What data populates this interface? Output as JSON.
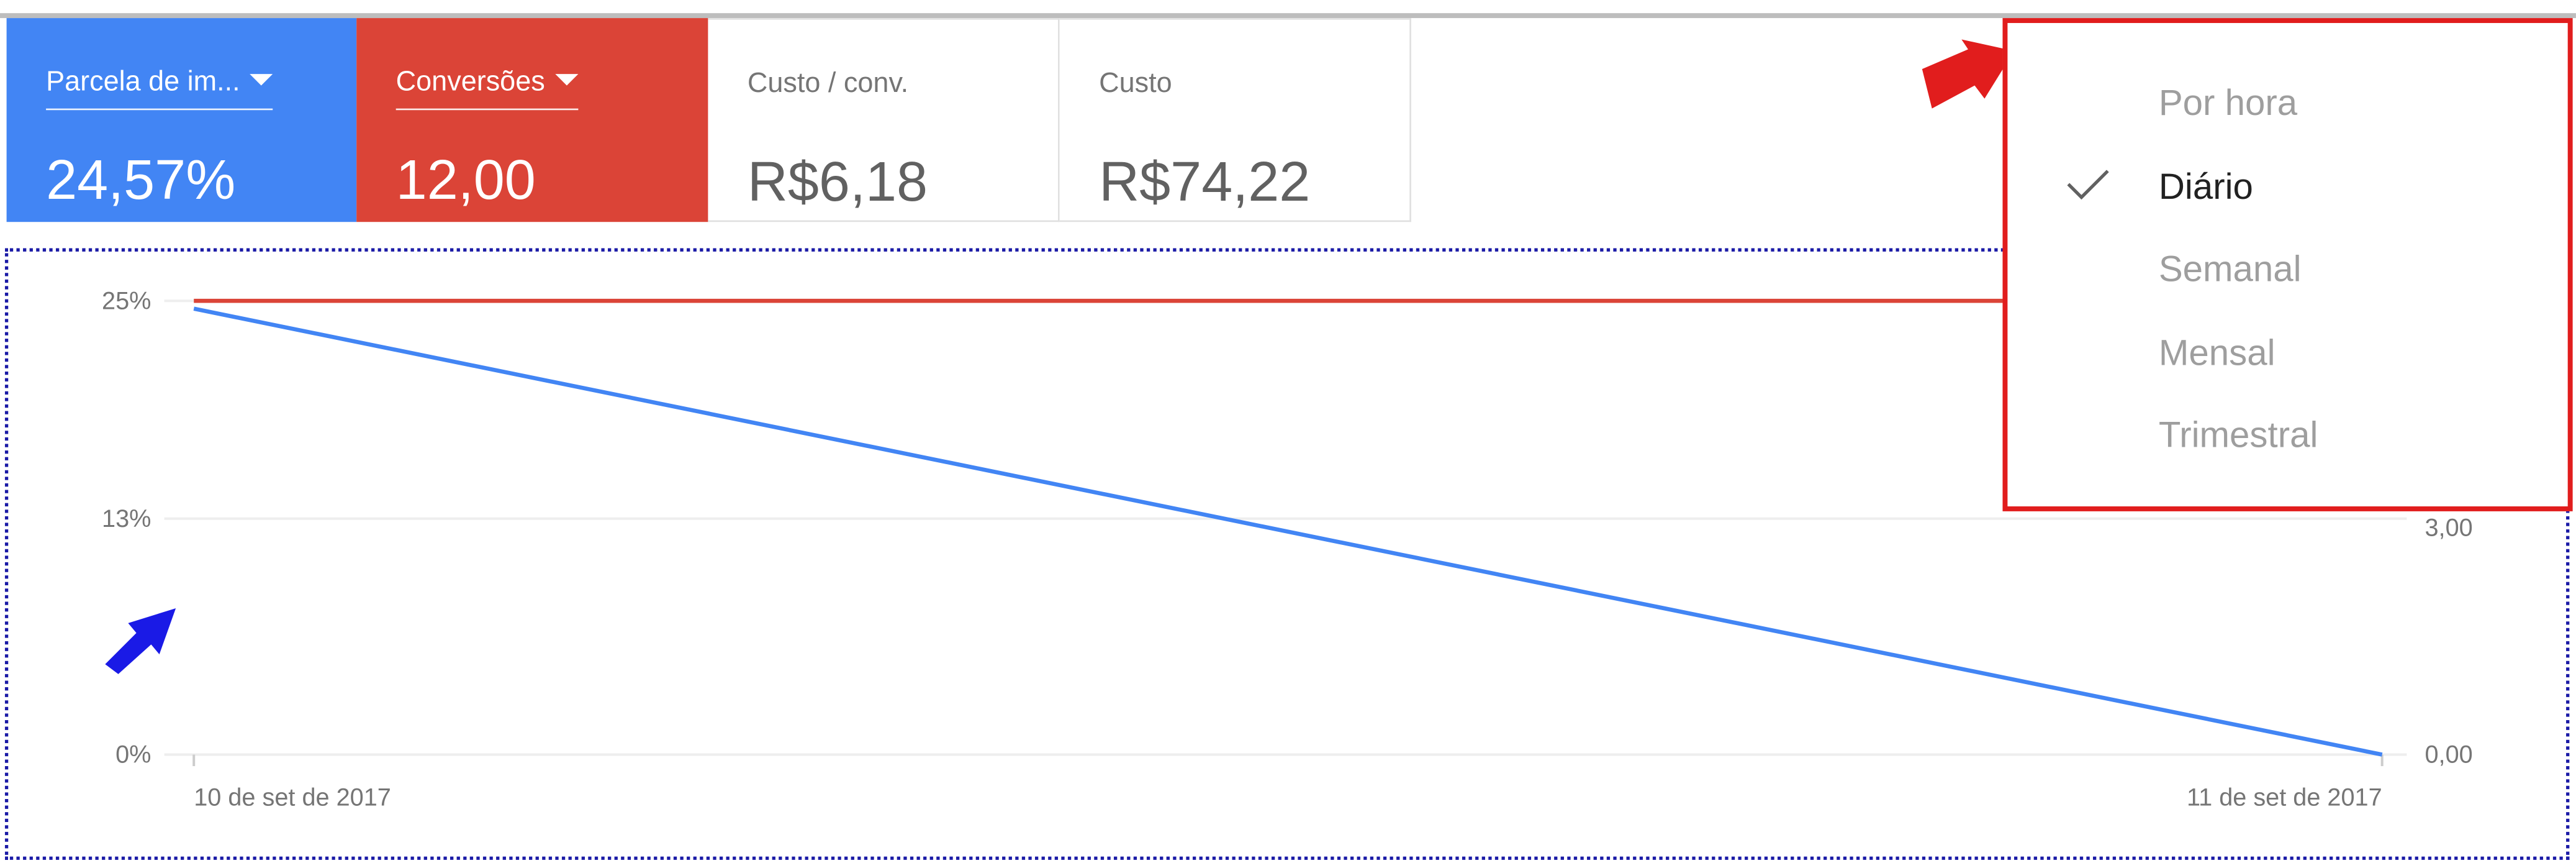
{
  "metrics": [
    {
      "label": "Parcela de im...",
      "value": "24,57%",
      "color": "#4285f4"
    },
    {
      "label": "Conversões",
      "value": "12,00",
      "color": "#db4437"
    },
    {
      "label": "Custo / conv.",
      "value": "R$6,18"
    },
    {
      "label": "Custo",
      "value": "R$74,22"
    }
  ],
  "period_menu": {
    "items": [
      "Por hora",
      "Diário",
      "Semanal",
      "Mensal",
      "Trimestral"
    ],
    "selected": "Diário"
  },
  "chart_data": {
    "type": "line",
    "x": [
      "10 de set de 2017",
      "11 de set de 2017"
    ],
    "left_axis": {
      "ticks": [
        "25%",
        "13%",
        "0%"
      ],
      "ylim": [
        0,
        25
      ]
    },
    "right_axis": {
      "ticks": [
        "3,00",
        "0,00"
      ],
      "ylim": [
        0,
        6
      ]
    },
    "series": [
      {
        "axis": "left",
        "values": [
          24.57,
          0
        ],
        "color": "#4285f4"
      },
      {
        "axis": "right",
        "values": [
          6,
          6
        ],
        "color": "#db4437"
      }
    ],
    "grid": true
  },
  "annotations": {
    "arrow_red_color": "#e11d1d",
    "arrow_blue_color": "#1a1ae6"
  }
}
